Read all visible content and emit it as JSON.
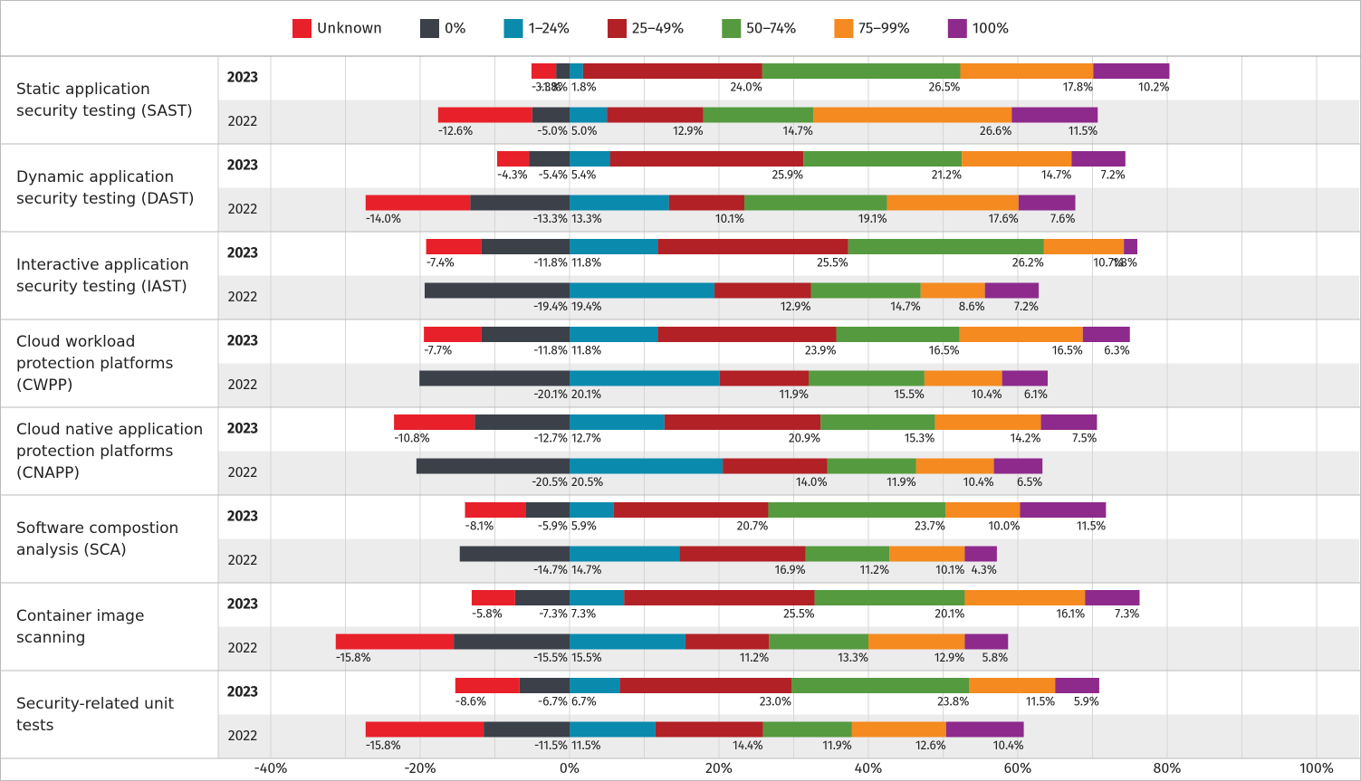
{
  "chart_data": {
    "type": "diverging_stacked_bar",
    "groups": [
      "Static application security testing (SAST)",
      "Dynamic application security testing (DAST)",
      "Interactive application security testing (IAST)",
      "Cloud workload protection platforms (CWPP)",
      "Cloud native application protection platforms (CNAPP)",
      "Software compostion analysis (SCA)",
      "Container image scanning",
      "Security-related unit tests"
    ],
    "categories": [
      "2023",
      "2022",
      "2023",
      "2022",
      "2023",
      "2022",
      "2023",
      "2022",
      "2023",
      "2022",
      "2023",
      "2022",
      "2023",
      "2022",
      "2023",
      "2022"
    ],
    "series": [
      {
        "name": "Unknown",
        "color": "#e8202a",
        "side": "negative",
        "values": [
          -3.3,
          -12.6,
          -4.3,
          -14.0,
          -7.4,
          null,
          -7.7,
          null,
          -10.8,
          null,
          -8.1,
          null,
          -5.8,
          -15.8,
          -8.6,
          -15.8
        ],
        "value_labels": [
          "-3.3%",
          "-12.6%",
          "-4.3%",
          "-14.0%",
          "-7.4%",
          null,
          "-7.7%",
          null,
          "-10.8%",
          null,
          "-8.1%",
          null,
          "-5.8%",
          "-15.8%",
          "-8.6%",
          "-15.8%"
        ]
      },
      {
        "name": "0%",
        "color": "#3c4049",
        "side": "negative",
        "values": [
          -1.8,
          -5.0,
          -5.4,
          -13.3,
          -11.8,
          -19.4,
          -11.8,
          -20.1,
          -12.7,
          -20.5,
          -5.9,
          -14.7,
          -7.3,
          -15.5,
          -6.7,
          -11.5
        ],
        "value_labels": [
          "-1.8%",
          "-5.0%",
          "-5.4%",
          "-13.3%",
          "-11.8%",
          "-19.4%",
          "-11.8%",
          "-20.1%",
          "-12.7%",
          "-20.5%",
          "-5.9%",
          "-14.7%",
          "-7.3%",
          "-15.5%",
          "-6.7%",
          "-11.5%"
        ]
      },
      {
        "name": "1–24%",
        "color": "#0a8aad",
        "side": "positive",
        "values": [
          1.8,
          5.0,
          5.4,
          13.3,
          11.8,
          19.4,
          11.8,
          20.1,
          12.7,
          20.5,
          5.9,
          14.7,
          7.3,
          15.5,
          6.7,
          11.5
        ],
        "value_labels": [
          "1.8%",
          "5.0%",
          "5.4%",
          "13.3%",
          "11.8%",
          "19.4%",
          "11.8%",
          "20.1%",
          "12.7%",
          "20.5%",
          "5.9%",
          "14.7%",
          "7.3%",
          "15.5%",
          "6.7%",
          "11.5%"
        ]
      },
      {
        "name": "25–49%",
        "color": "#b22126",
        "side": "positive",
        "values": [
          24.0,
          12.9,
          25.9,
          10.1,
          25.5,
          12.9,
          23.9,
          11.9,
          20.9,
          14.0,
          20.7,
          16.9,
          25.5,
          11.2,
          23.0,
          14.4
        ],
        "value_labels": [
          "24.0%",
          "12.9%",
          "25.9%",
          "10.1%",
          "25.5%",
          "12.9%",
          "23.9%",
          "11.9%",
          "20.9%",
          "14.0%",
          "20.7%",
          "16.9%",
          "25.5%",
          "11.2%",
          "23.0%",
          "14.4%"
        ]
      },
      {
        "name": "50–74%",
        "color": "#559a3f",
        "side": "positive",
        "values": [
          26.5,
          14.7,
          21.2,
          19.1,
          26.2,
          14.7,
          16.5,
          15.5,
          15.3,
          11.9,
          23.7,
          11.2,
          20.1,
          13.3,
          23.8,
          11.9
        ],
        "value_labels": [
          "26.5%",
          "14.7%",
          "21.2%",
          "19.1%",
          "26.2%",
          "14.7%",
          "16.5%",
          "15.5%",
          "15.3%",
          "11.9%",
          "23.7%",
          "11.2%",
          "20.1%",
          "13.3%",
          "23.8%",
          "11.9%"
        ]
      },
      {
        "name": "75–99%",
        "color": "#f48a20",
        "side": "positive",
        "values": [
          17.8,
          26.6,
          14.7,
          17.6,
          10.7,
          8.6,
          16.5,
          10.4,
          14.2,
          10.4,
          10.0,
          10.1,
          16.1,
          12.9,
          11.5,
          12.6
        ],
        "value_labels": [
          "17.8%",
          "26.6%",
          "14.7%",
          "17.6%",
          "10.7%",
          "8.6%",
          "16.5%",
          "10.4%",
          "14.2%",
          "10.4%",
          "10.0%",
          "10.1%",
          "16.1%",
          "12.9%",
          "11.5%",
          "12.6%"
        ]
      },
      {
        "name": "100%",
        "color": "#8e2a8c",
        "side": "positive",
        "values": [
          10.2,
          11.5,
          7.2,
          7.6,
          1.8,
          7.2,
          6.3,
          6.1,
          7.5,
          6.5,
          11.5,
          4.3,
          7.3,
          5.8,
          5.9,
          10.4
        ],
        "value_labels": [
          "10.2%",
          "11.5%",
          "7.2%",
          "7.6%",
          "1.8%",
          "7.2%",
          "6.3%",
          "6.1%",
          "7.5%",
          "6.5%",
          "11.5%",
          "4.3%",
          "7.3%",
          "5.8%",
          "5.9%",
          "10.4%"
        ]
      }
    ],
    "xlim": [
      -40,
      100
    ],
    "xticks": [
      {
        "value": -40,
        "label": "-40%"
      },
      {
        "value": -20,
        "label": "-20%"
      },
      {
        "value": 0,
        "label": "0%"
      },
      {
        "value": 20,
        "label": "20%"
      },
      {
        "value": 40,
        "label": "40%"
      },
      {
        "value": 60,
        "label": "60%"
      },
      {
        "value": 80,
        "label": "80%"
      },
      {
        "value": 100,
        "label": "100%"
      }
    ],
    "xminor": [
      -30,
      -10,
      10,
      30,
      50,
      70,
      90
    ],
    "grid": true
  }
}
